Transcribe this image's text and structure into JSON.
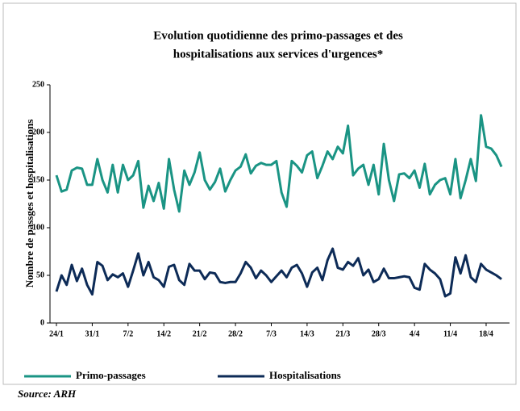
{
  "chart_data": {
    "type": "line",
    "title": [
      "Evolution quotidienne des primo-passages et des",
      "hospitalisations  aux services d'urgences*"
    ],
    "y_label": "Nombre de passges et hospitalisations",
    "source": "Source: ARH",
    "categories": [
      "24/1",
      null,
      null,
      null,
      null,
      null,
      null,
      "31/1",
      null,
      null,
      null,
      null,
      null,
      null,
      "7/2",
      null,
      null,
      null,
      null,
      null,
      null,
      "14/2",
      null,
      null,
      null,
      null,
      null,
      null,
      "21/2",
      null,
      null,
      null,
      null,
      null,
      null,
      "28/2",
      null,
      null,
      null,
      null,
      null,
      null,
      "7/3",
      null,
      null,
      null,
      null,
      null,
      null,
      "14/3",
      null,
      null,
      null,
      null,
      null,
      null,
      "21/3",
      null,
      null,
      null,
      null,
      null,
      null,
      "28/3",
      null,
      null,
      null,
      null,
      null,
      null,
      "4/4",
      null,
      null,
      null,
      null,
      null,
      null,
      "11/4",
      null,
      null,
      null,
      null,
      null,
      null,
      "18/4",
      null,
      null,
      null
    ],
    "series": [
      {
        "name": "Primo-passages",
        "color": "#1a9484",
        "values": [
          155,
          138,
          140,
          160,
          163,
          162,
          145,
          145,
          172,
          150,
          137,
          166,
          137,
          166,
          150,
          155,
          170,
          121,
          144,
          128,
          147,
          120,
          172,
          140,
          117,
          160,
          145,
          158,
          179,
          150,
          140,
          148,
          162,
          138,
          150,
          160,
          164,
          177,
          157,
          165,
          168,
          166,
          166,
          170,
          137,
          122,
          170,
          165,
          158,
          176,
          180,
          152,
          165,
          180,
          172,
          185,
          178,
          207,
          155,
          162,
          166,
          145,
          166,
          135,
          188,
          150,
          128,
          156,
          157,
          152,
          160,
          142,
          167,
          135,
          145,
          150,
          152,
          135,
          172,
          131,
          150,
          172,
          149,
          218,
          185,
          183,
          176,
          164
        ]
      },
      {
        "name": "Hospitalisations",
        "color": "#0d2b57",
        "values": [
          33,
          50,
          40,
          61,
          44,
          57,
          40,
          30,
          64,
          60,
          45,
          51,
          48,
          52,
          38,
          55,
          73,
          50,
          64,
          48,
          45,
          38,
          59,
          61,
          45,
          40,
          62,
          55,
          55,
          46,
          53,
          52,
          43,
          42,
          43,
          43,
          52,
          64,
          58,
          47,
          55,
          50,
          43,
          49,
          55,
          48,
          58,
          61,
          52,
          38,
          53,
          58,
          45,
          66,
          78,
          58,
          56,
          64,
          60,
          68,
          50,
          56,
          43,
          46,
          57,
          47,
          47,
          48,
          49,
          48,
          37,
          35,
          62,
          56,
          52,
          46,
          28,
          31,
          69,
          52,
          71,
          48,
          43,
          62,
          56,
          53,
          50,
          46
        ]
      }
    ],
    "ylim": [
      0,
      250
    ],
    "yticks": [
      0,
      50,
      100,
      150,
      200,
      250
    ]
  }
}
